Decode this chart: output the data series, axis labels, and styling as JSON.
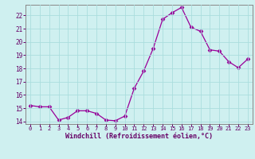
{
  "x": [
    0,
    1,
    2,
    3,
    4,
    5,
    6,
    7,
    8,
    9,
    10,
    11,
    12,
    13,
    14,
    15,
    16,
    17,
    18,
    19,
    20,
    21,
    22,
    23
  ],
  "y": [
    15.2,
    15.1,
    15.1,
    14.1,
    14.3,
    14.8,
    14.8,
    14.6,
    14.1,
    14.05,
    14.4,
    16.5,
    17.8,
    19.5,
    21.7,
    22.2,
    22.6,
    21.1,
    20.8,
    19.4,
    19.3,
    18.5,
    18.05,
    18.7
  ],
  "line_color": "#990099",
  "marker": "D",
  "marker_size": 2.5,
  "bg_color": "#cff0f0",
  "grid_color": "#aadddd",
  "xlabel": "Windchill (Refroidissement éolien,°C)",
  "xlabel_color": "#660066",
  "tick_color": "#660066",
  "ylim": [
    13.8,
    22.8
  ],
  "yticks": [
    14,
    15,
    16,
    17,
    18,
    19,
    20,
    21,
    22
  ],
  "xticks": [
    0,
    1,
    2,
    3,
    4,
    5,
    6,
    7,
    8,
    9,
    10,
    11,
    12,
    13,
    14,
    15,
    16,
    17,
    18,
    19,
    20,
    21,
    22,
    23
  ],
  "spine_color": "#888888"
}
